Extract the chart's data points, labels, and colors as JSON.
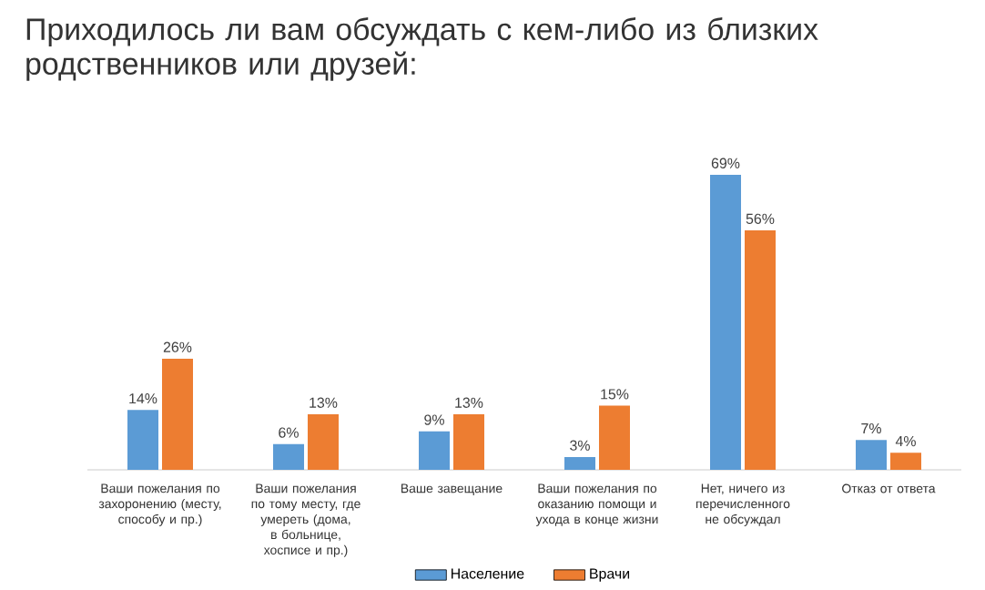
{
  "chart_data": {
    "type": "bar",
    "title": "Приходилось ли вам обсуждать с кем-либо из близких родственников или друзей:",
    "categories": [
      "Ваши пожелания по захоронению (месту, способу и пр.)",
      "Ваши пожелания по тому месту, где умереть (дома, в больнице, хосписе и пр.)",
      "Ваше завещание",
      "Ваши пожелания по оказанию помощи и ухода в конце жизни",
      "Нет, ничего из перечисленного не обсуждал",
      "Отказ от ответа"
    ],
    "series": [
      {
        "name": "Население",
        "color": "#5b9bd5",
        "values": [
          14,
          6,
          9,
          3,
          69,
          7
        ],
        "value_labels": [
          "14%",
          "6%",
          "9%",
          "3%",
          "69%",
          "7%"
        ]
      },
      {
        "name": "Врачи",
        "color": "#ed7d31",
        "values": [
          26,
          13,
          13,
          15,
          56,
          4
        ],
        "value_labels": [
          "26%",
          "13%",
          "13%",
          "15%",
          "56%",
          "4%"
        ]
      }
    ],
    "legend": "bottom"
  }
}
